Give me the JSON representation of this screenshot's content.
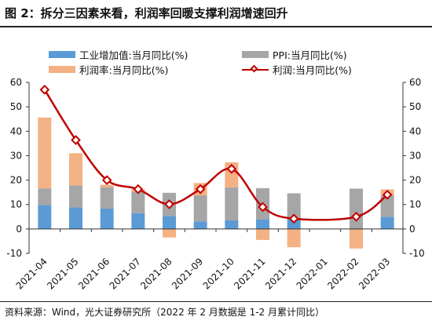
{
  "title": "图 2：拆分三因素来看，利润率回暖支撑利润增速回升",
  "source": "资料来源：Wind，光大证券研究所（2022 年 2 月数据是 1-2 月累计同比）",
  "colors": {
    "industry": "#5b9bd5",
    "ppi": "#a6a6a6",
    "margin": "#f4b183",
    "profit": "#c00000"
  },
  "chart_data": {
    "type": "bar",
    "categories": [
      "2021-04",
      "2021-05",
      "2021-06",
      "2021-07",
      "2021-08",
      "2021-09",
      "2021-10",
      "2021-11",
      "2021-12",
      "2022-01",
      "2022-02",
      "2022-03"
    ],
    "series": [
      {
        "name": "工业增加值:当月同比(%)",
        "type": "bar",
        "values": [
          9.8,
          8.8,
          8.3,
          6.4,
          5.3,
          3.1,
          3.5,
          3.8,
          4.3,
          null,
          null,
          5.0
        ]
      },
      {
        "name": "PPI:当月同比(%)",
        "type": "bar",
        "values": [
          6.8,
          9.0,
          8.8,
          9.0,
          9.5,
          10.7,
          13.5,
          12.9,
          10.3,
          null,
          16.5,
          8.8
        ]
      },
      {
        "name": "利润率:当月同比(%)",
        "type": "bar",
        "values": [
          29.0,
          13.2,
          1.0,
          1.0,
          -3.5,
          5.0,
          10.3,
          -4.5,
          -7.5,
          null,
          -8.0,
          2.4
        ]
      },
      {
        "name": "利润:当月同比(%)",
        "type": "line",
        "values": [
          57.0,
          36.4,
          20.0,
          16.3,
          10.1,
          16.3,
          24.6,
          9.0,
          4.2,
          null,
          5.0,
          14.0
        ]
      }
    ],
    "ylim": [
      -10,
      60
    ],
    "yticks": [
      60,
      50,
      40,
      30,
      20,
      10,
      0,
      -10
    ],
    "yticks_right": [
      60,
      50,
      40,
      30,
      20,
      10,
      0,
      -10
    ],
    "stacked": true,
    "legend_position": "top"
  }
}
